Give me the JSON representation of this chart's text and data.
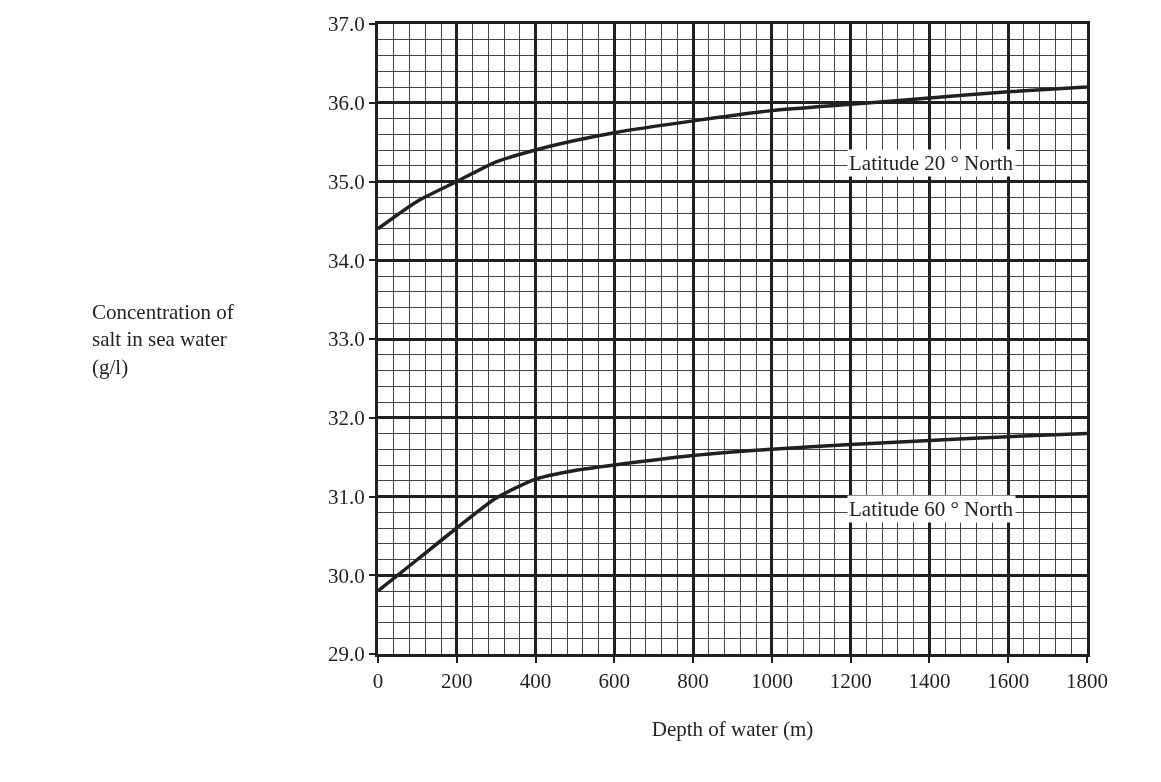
{
  "chart_data": {
    "type": "line",
    "xlabel": "Depth of water (m)",
    "ylabel": "Concentration of\nsalt in sea water\n(g/l)",
    "x": [
      0,
      100,
      200,
      300,
      400,
      500,
      600,
      800,
      1000,
      1200,
      1400,
      1600,
      1800
    ],
    "series": [
      {
        "name": "Latitude 20 ° North",
        "color": "#231f20",
        "values": [
          34.4,
          34.75,
          35.0,
          35.25,
          35.4,
          35.52,
          35.62,
          35.77,
          35.9,
          35.98,
          36.06,
          36.14,
          36.2
        ]
      },
      {
        "name": "Latitude 60 ° North",
        "color": "#231f20",
        "values": [
          29.8,
          30.2,
          30.6,
          30.98,
          31.22,
          31.33,
          31.4,
          31.52,
          31.6,
          31.66,
          31.71,
          31.76,
          31.8
        ]
      }
    ],
    "xlim": [
      0,
      1800
    ],
    "xticks": [
      0,
      200,
      400,
      600,
      800,
      1000,
      1200,
      1400,
      1600,
      1800
    ],
    "ylim": [
      29,
      37
    ],
    "yticks": [
      {
        "value": 29,
        "label": "29.0"
      },
      {
        "value": 30,
        "label": "30.0"
      },
      {
        "value": 31,
        "label": "31.0"
      },
      {
        "value": 32,
        "label": "32.0"
      },
      {
        "value": 33,
        "label": "33.0"
      },
      {
        "value": 34,
        "label": "34.0"
      },
      {
        "value": 35,
        "label": "35.0"
      },
      {
        "value": 36,
        "label": "36.0"
      },
      {
        "value": 37,
        "label": "37.0"
      }
    ],
    "grid": true,
    "legend": false,
    "marker": "none",
    "line_style": "solid"
  }
}
